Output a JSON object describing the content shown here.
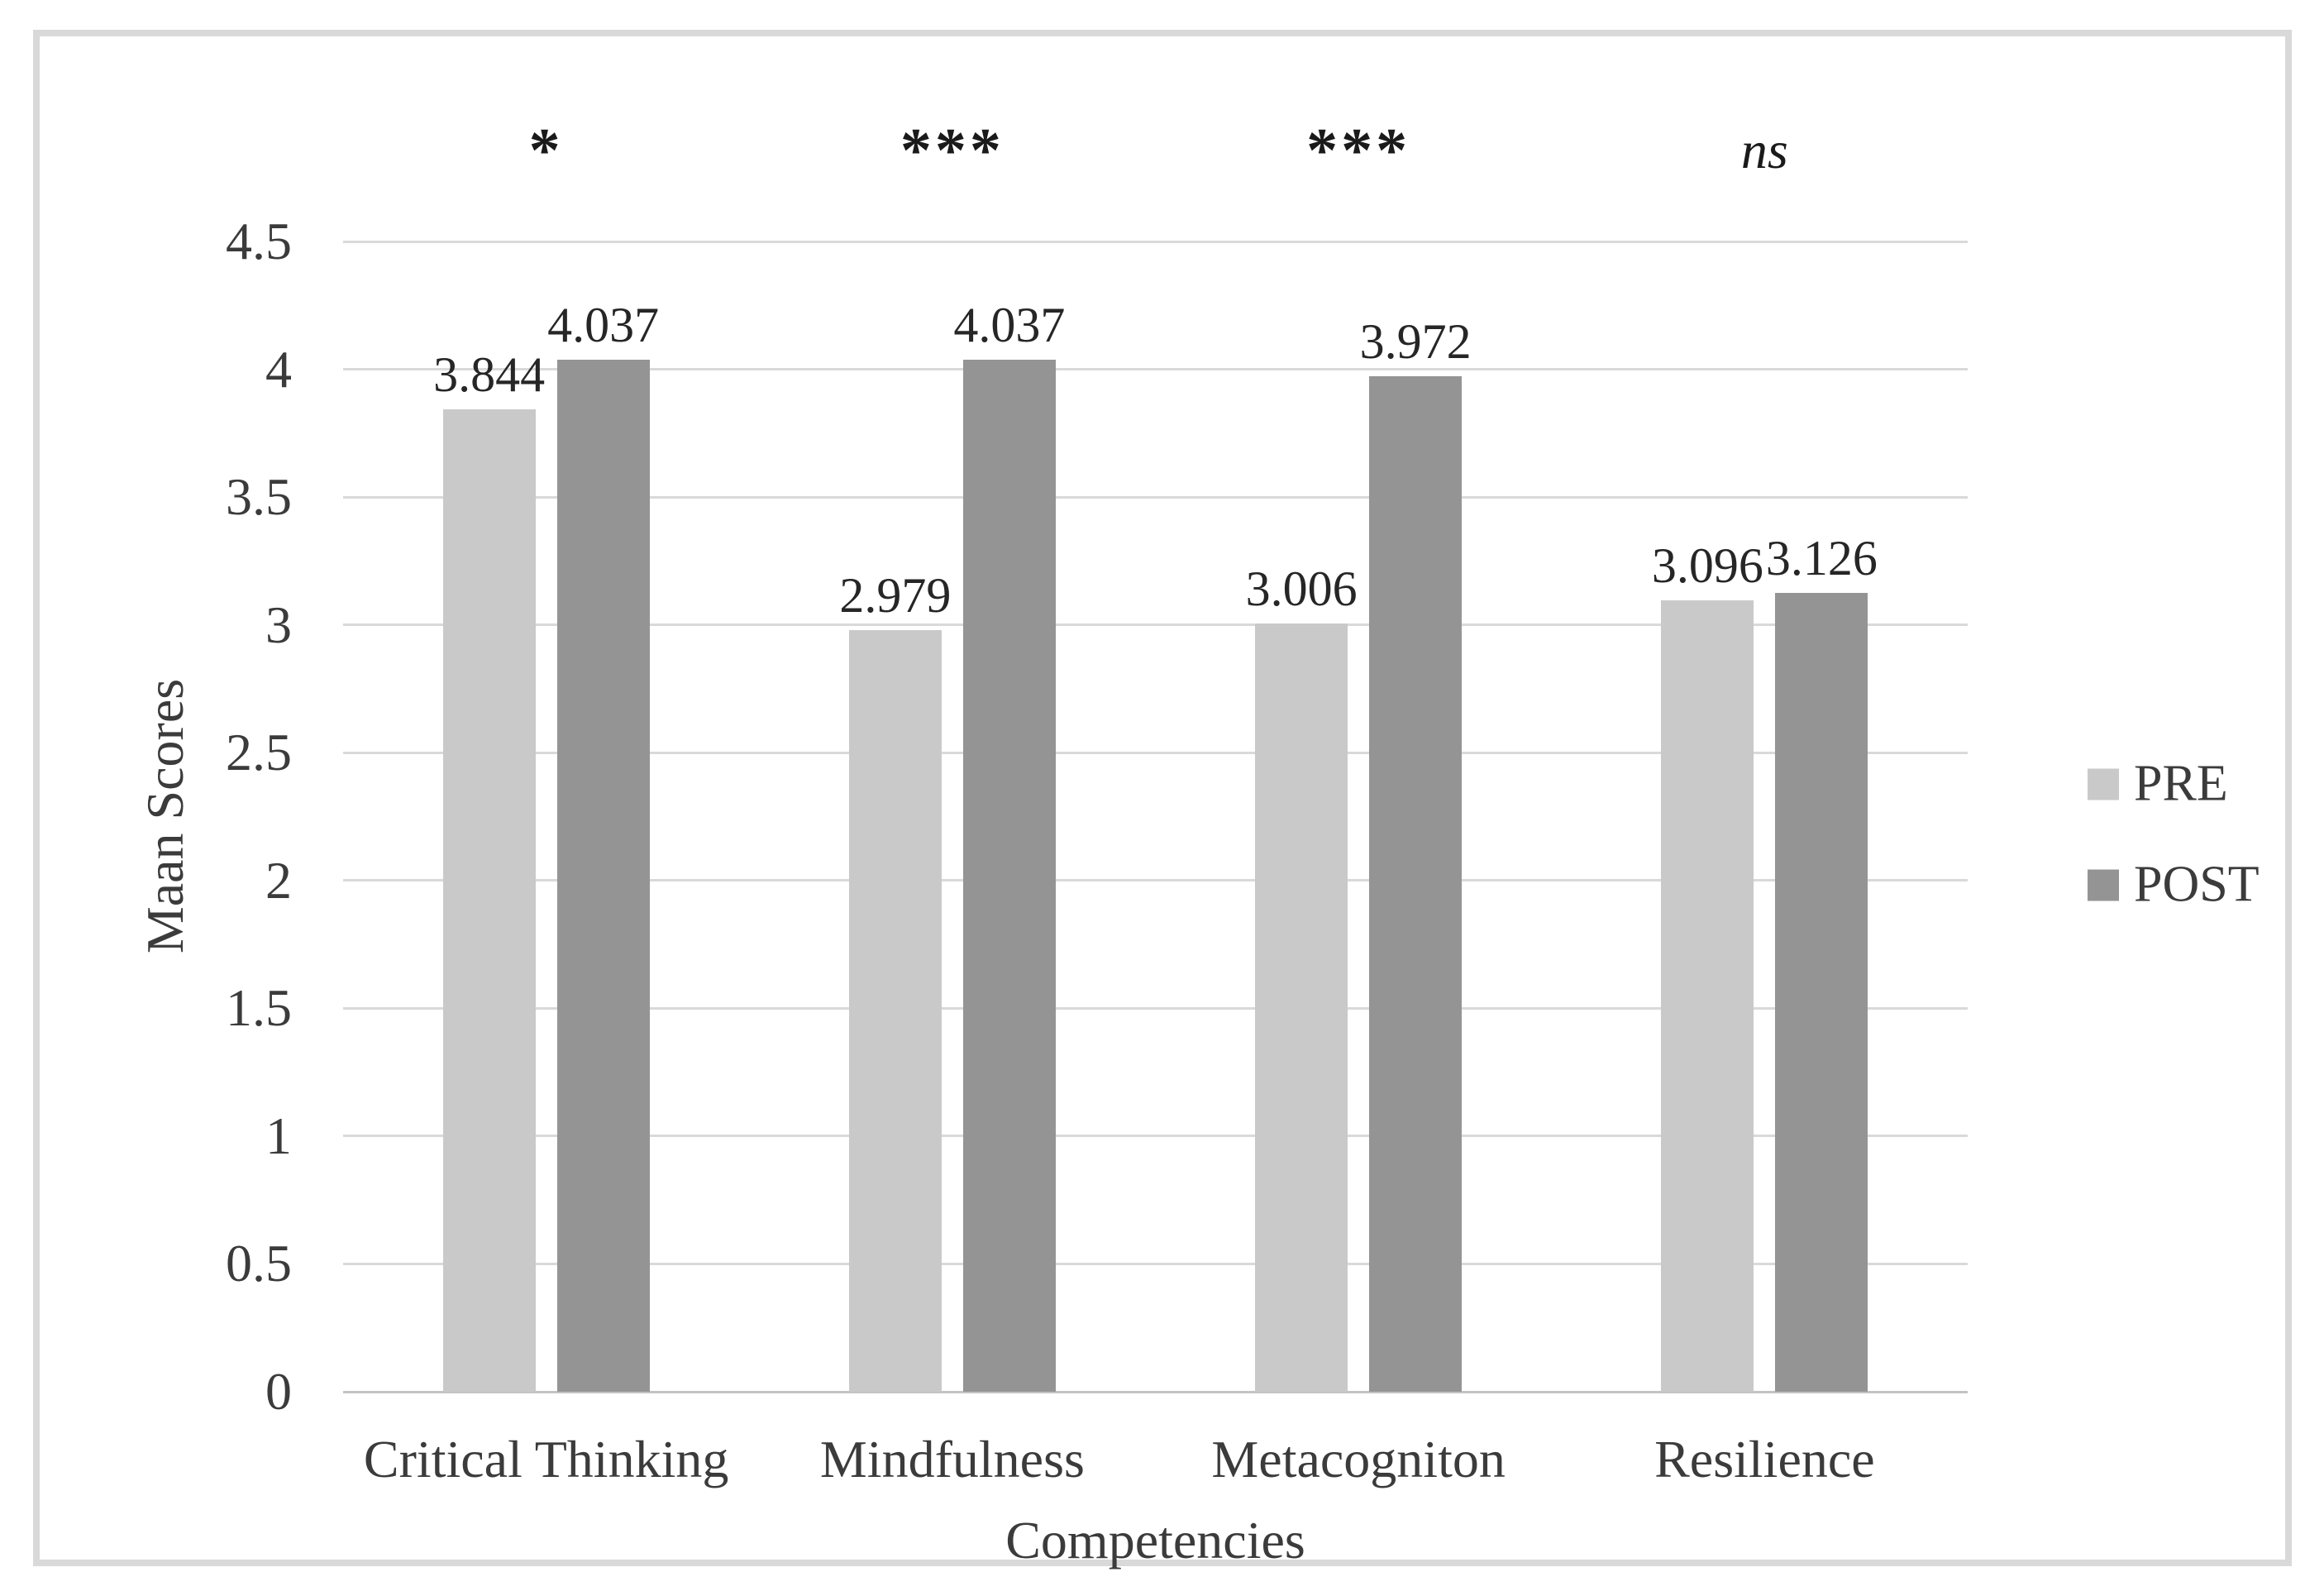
{
  "chart_data": {
    "type": "bar",
    "title": "",
    "xlabel": "Competencies",
    "ylabel": "Maan Scores",
    "categories": [
      "Critical Thinking",
      "Mindfulness",
      "Metacogniton",
      "Resilience"
    ],
    "series": [
      {
        "name": "PRE",
        "color": "#c9c9c9",
        "values": [
          3.844,
          2.979,
          3.006,
          3.096
        ]
      },
      {
        "name": "POST",
        "color": "#949494",
        "values": [
          4.037,
          4.037,
          3.972,
          3.126
        ]
      }
    ],
    "data_labels": [
      [
        "3.844",
        "2.979",
        "3.006",
        "3.096"
      ],
      [
        "4.037",
        "4.037",
        "3.972",
        "3.126"
      ]
    ],
    "significance_markers": [
      {
        "text": "*",
        "italic": false
      },
      {
        "text": "***",
        "italic": false
      },
      {
        "text": "***",
        "italic": false
      },
      {
        "text": "ns",
        "italic": true
      }
    ],
    "y_ticks": [
      "0",
      "0.5",
      "1",
      "1.5",
      "2",
      "2.5",
      "3",
      "3.5",
      "4",
      "4.5"
    ],
    "ylim": [
      0,
      4.5
    ],
    "grid": true,
    "legend_position": "right",
    "legend_entries": [
      "PRE",
      "POST"
    ],
    "colors": {
      "gridline": "#d9d9d9",
      "axis_baseline": "#c3c3c3",
      "tick_text": "#3b3b3b",
      "data_label_text": "#262626",
      "marker_text": "#1a1a1a",
      "frame_border": "#d9d9d9",
      "background": "#ffffff"
    }
  }
}
